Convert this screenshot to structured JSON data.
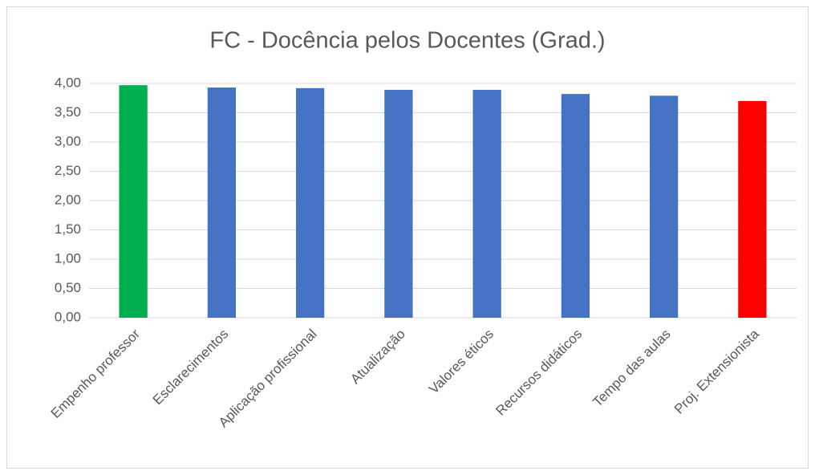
{
  "chart_data": {
    "type": "bar",
    "title": "FC - Docência pelos Docentes (Grad.)",
    "categories": [
      "Empenho professor",
      "Esclarecimentos",
      "Aplicação profissional",
      "Atualização",
      "Valores éticos",
      "Recursos didáticos",
      "Tempo das aulas",
      "Proj. Extensionista"
    ],
    "values": [
      3.97,
      3.93,
      3.92,
      3.89,
      3.89,
      3.82,
      3.79,
      3.7
    ],
    "colors": [
      "#00b050",
      "#4472c4",
      "#4472c4",
      "#4472c4",
      "#4472c4",
      "#4472c4",
      "#4472c4",
      "#ff0000"
    ],
    "ylim": [
      0,
      4
    ],
    "yticks": [
      {
        "value": 0,
        "label": "0,00"
      },
      {
        "value": 0.5,
        "label": "0,50"
      },
      {
        "value": 1,
        "label": "1,00"
      },
      {
        "value": 1.5,
        "label": "1,50"
      },
      {
        "value": 2,
        "label": "2,00"
      },
      {
        "value": 2.5,
        "label": "2,50"
      },
      {
        "value": 3,
        "label": "3,00"
      },
      {
        "value": 3.5,
        "label": "3,50"
      },
      {
        "value": 4,
        "label": "4,00"
      }
    ],
    "grid": true
  }
}
